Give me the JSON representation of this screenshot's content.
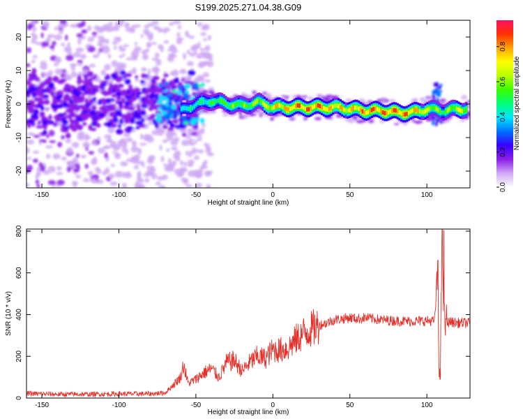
{
  "figure": {
    "title": "S199.2025.271.04.38.G09"
  },
  "chart_data": [
    {
      "type": "heatmap",
      "xlabel": "Height of straight line (km)",
      "ylabel": "Frequency (Hz)",
      "xlim": [
        -160,
        128
      ],
      "ylim": [
        -25,
        25
      ],
      "xticks": [
        -150,
        -100,
        -50,
        0,
        50,
        100
      ],
      "yticks": [
        -20,
        -10,
        0,
        10,
        20
      ],
      "grid": false,
      "colorbar": {
        "label": "Normalized spectral amplitude",
        "range": [
          0,
          0.95
        ],
        "ticks": [
          0.0,
          0.2,
          0.4,
          0.6,
          0.8
        ],
        "colors": [
          "#ffffff",
          "#cfa8f5",
          "#8c1fe8",
          "#3a00ff",
          "#0070ff",
          "#00e5ff",
          "#00ff7a",
          "#37ff00",
          "#b8ff00",
          "#ffff00",
          "#ffa500",
          "#ff3000",
          "#ff1060"
        ]
      },
      "ridge": {
        "description_x": [
          -60,
          -50,
          -40,
          -30,
          -20,
          -10,
          0,
          10,
          20,
          30,
          40,
          50,
          60,
          70,
          80,
          90,
          100,
          110,
          120,
          125
        ],
        "frequency": [
          -2,
          0,
          1,
          0,
          -0.5,
          0.5,
          -1,
          -1,
          -1,
          -1,
          -1,
          -1.5,
          -2,
          -2,
          -2.5,
          -2.5,
          -1.5,
          -2,
          -1.5,
          -1.5
        ],
        "amplitude": [
          0.45,
          0.5,
          0.55,
          0.6,
          0.6,
          0.65,
          0.75,
          0.85,
          0.88,
          0.88,
          0.8,
          0.8,
          0.88,
          0.88,
          0.9,
          0.85,
          0.7,
          0.55,
          0.75,
          0.7
        ]
      }
    },
    {
      "type": "line",
      "xlabel": "Height of straight line (km)",
      "ylabel": "SNR (10 * v/v)",
      "xlim": [
        -160,
        128
      ],
      "ylim": [
        0,
        810
      ],
      "xticks": [
        -150,
        -100,
        -50,
        0,
        50,
        100
      ],
      "yticks": [
        0,
        200,
        400,
        600,
        800
      ],
      "grid": false,
      "series": [
        {
          "color": "#e8302a",
          "x": [
            -160,
            -140,
            -120,
            -100,
            -80,
            -70,
            -65,
            -60,
            -58,
            -55,
            -50,
            -45,
            -40,
            -35,
            -30,
            -25,
            -20,
            -15,
            -10,
            -5,
            0,
            5,
            10,
            15,
            20,
            25,
            30,
            35,
            40,
            45,
            50,
            55,
            60,
            70,
            80,
            90,
            100,
            105,
            107,
            108,
            109,
            110,
            111,
            112,
            115,
            120,
            128
          ],
          "y": [
            22,
            18,
            18,
            20,
            20,
            25,
            60,
            100,
            160,
            70,
            90,
            120,
            140,
            100,
            170,
            180,
            130,
            170,
            200,
            190,
            230,
            230,
            240,
            280,
            310,
            330,
            350,
            360,
            375,
            380,
            385,
            380,
            385,
            375,
            370,
            368,
            370,
            370,
            600,
            90,
            300,
            800,
            370,
            360,
            365,
            360,
            360
          ]
        }
      ]
    }
  ]
}
